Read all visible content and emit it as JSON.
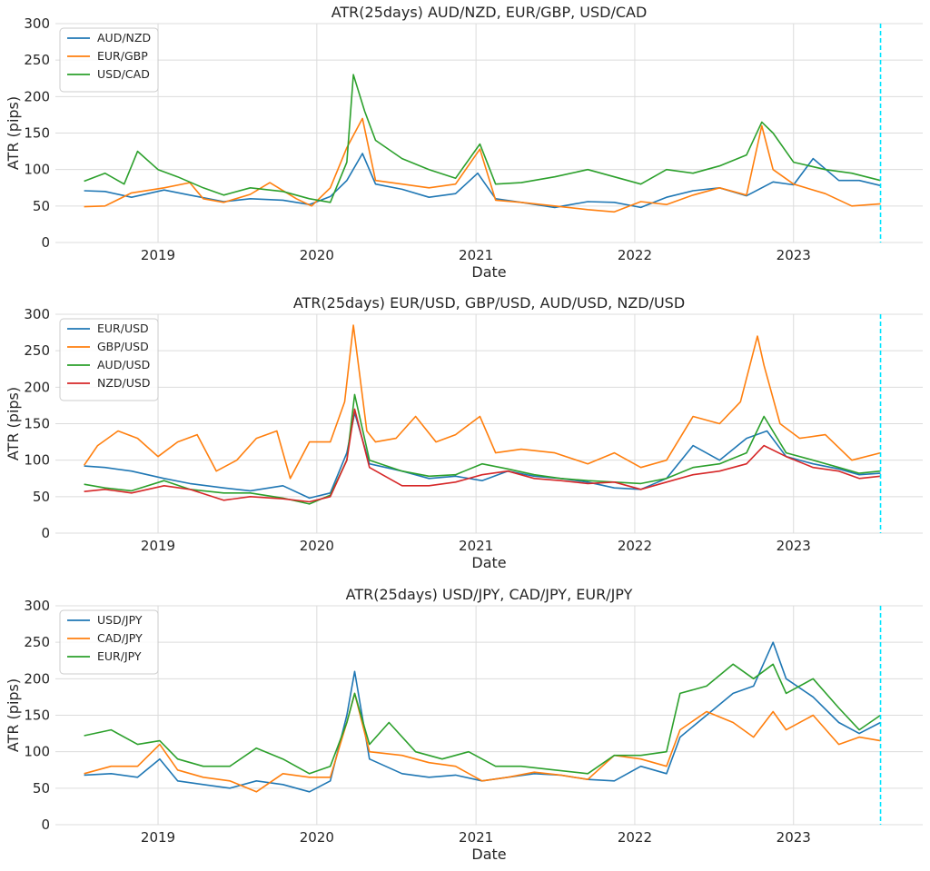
{
  "colors": {
    "blue": "#1f77b4",
    "orange": "#ff7f0e",
    "green": "#2ca02c",
    "red": "#d62728",
    "vline": "#00e5ff",
    "grid": "#dcdcdc",
    "axes_bg": "#ffffff"
  },
  "chart_data": [
    {
      "type": "line",
      "title": "ATR(25days)  AUD/NZD, EUR/GBP, USD/CAD",
      "xlabel": "Date",
      "ylabel": "ATR (pips)",
      "ylim": [
        0,
        300
      ],
      "yticks": [
        "0",
        "50",
        "100",
        "150",
        "200",
        "250",
        "300"
      ],
      "xlim": [
        "2018-05-10",
        "2023-10-25"
      ],
      "xticks": [
        "2019",
        "2020",
        "2021",
        "2022",
        "2023"
      ],
      "grid": true,
      "legend": "top-left",
      "vline": "2023-07-20",
      "series": [
        {
          "name": "AUD/NZD",
          "color": "blue",
          "x": [
            "2018-07-15",
            "2018-09-01",
            "2018-11-01",
            "2019-01-15",
            "2019-03-15",
            "2019-06-01",
            "2019-08-01",
            "2019-10-15",
            "2019-12-15",
            "2020-02-01",
            "2020-03-10",
            "2020-04-15",
            "2020-05-15",
            "2020-07-15",
            "2020-09-15",
            "2020-11-15",
            "2021-01-05",
            "2021-02-15",
            "2021-04-15",
            "2021-07-01",
            "2021-09-15",
            "2021-11-15",
            "2022-01-15",
            "2022-03-15",
            "2022-05-15",
            "2022-07-15",
            "2022-09-15",
            "2022-11-15",
            "2023-01-01",
            "2023-02-15",
            "2023-04-15",
            "2023-06-01",
            "2023-07-20"
          ],
          "y": [
            71,
            70,
            62,
            72,
            65,
            56,
            60,
            58,
            52,
            63,
            85,
            122,
            80,
            73,
            62,
            67,
            95,
            60,
            55,
            48,
            56,
            55,
            48,
            62,
            71,
            75,
            64,
            83,
            79,
            115,
            85,
            85,
            78
          ]
        },
        {
          "name": "EUR/GBP",
          "color": "orange",
          "x": [
            "2018-07-15",
            "2018-09-01",
            "2018-11-01",
            "2019-01-15",
            "2019-03-15",
            "2019-04-15",
            "2019-06-01",
            "2019-08-01",
            "2019-09-15",
            "2019-11-15",
            "2019-12-20",
            "2020-02-01",
            "2020-03-10",
            "2020-04-15",
            "2020-05-15",
            "2020-07-15",
            "2020-09-15",
            "2020-11-15",
            "2021-01-10",
            "2021-02-15",
            "2021-04-15",
            "2021-07-01",
            "2021-09-15",
            "2021-11-15",
            "2022-01-15",
            "2022-03-15",
            "2022-05-15",
            "2022-07-15",
            "2022-09-15",
            "2022-10-20",
            "2022-11-15",
            "2023-01-01",
            "2023-03-15",
            "2023-05-15",
            "2023-07-20"
          ],
          "y": [
            49,
            50,
            68,
            75,
            82,
            60,
            55,
            66,
            82,
            60,
            50,
            75,
            130,
            170,
            85,
            80,
            75,
            80,
            128,
            58,
            55,
            50,
            45,
            42,
            56,
            52,
            65,
            75,
            65,
            160,
            100,
            80,
            67,
            50,
            53
          ]
        },
        {
          "name": "USD/CAD",
          "color": "green",
          "x": [
            "2018-07-15",
            "2018-09-01",
            "2018-10-15",
            "2018-11-15",
            "2019-01-01",
            "2019-02-15",
            "2019-04-15",
            "2019-06-01",
            "2019-08-01",
            "2019-10-15",
            "2019-12-15",
            "2020-02-01",
            "2020-03-10",
            "2020-03-25",
            "2020-04-20",
            "2020-05-15",
            "2020-07-15",
            "2020-09-15",
            "2020-11-15",
            "2021-01-10",
            "2021-02-15",
            "2021-04-15",
            "2021-07-01",
            "2021-09-15",
            "2021-11-15",
            "2022-01-15",
            "2022-03-15",
            "2022-05-15",
            "2022-07-15",
            "2022-09-15",
            "2022-10-20",
            "2022-11-15",
            "2023-01-01",
            "2023-03-15",
            "2023-05-15",
            "2023-07-20"
          ],
          "y": [
            84,
            95,
            80,
            125,
            100,
            90,
            75,
            65,
            75,
            70,
            60,
            55,
            110,
            230,
            180,
            140,
            115,
            100,
            88,
            135,
            80,
            82,
            90,
            100,
            90,
            80,
            100,
            95,
            105,
            120,
            165,
            150,
            110,
            100,
            95,
            85
          ]
        }
      ]
    },
    {
      "type": "line",
      "title": "ATR(25days) EUR/USD, GBP/USD, AUD/USD, NZD/USD",
      "xlabel": "Date",
      "ylabel": "ATR (pips)",
      "ylim": [
        0,
        300
      ],
      "yticks": [
        "0",
        "50",
        "100",
        "150",
        "200",
        "250",
        "300"
      ],
      "xlim": [
        "2018-05-10",
        "2023-10-25"
      ],
      "xticks": [
        "2019",
        "2020",
        "2021",
        "2022",
        "2023"
      ],
      "grid": true,
      "legend": "top-left",
      "vline": "2023-07-20",
      "series": [
        {
          "name": "EUR/USD",
          "color": "blue",
          "x": [
            "2018-07-15",
            "2018-09-01",
            "2018-11-01",
            "2019-01-15",
            "2019-03-15",
            "2019-06-01",
            "2019-08-01",
            "2019-10-15",
            "2019-12-15",
            "2020-02-01",
            "2020-03-10",
            "2020-03-28",
            "2020-05-01",
            "2020-07-15",
            "2020-09-15",
            "2020-11-15",
            "2021-01-15",
            "2021-03-15",
            "2021-05-15",
            "2021-07-15",
            "2021-09-15",
            "2021-11-15",
            "2022-01-15",
            "2022-03-15",
            "2022-05-15",
            "2022-07-15",
            "2022-09-15",
            "2022-11-01",
            "2022-12-15",
            "2023-02-15",
            "2023-04-15",
            "2023-06-01",
            "2023-07-20"
          ],
          "y": [
            92,
            90,
            85,
            75,
            68,
            62,
            58,
            65,
            48,
            55,
            110,
            165,
            95,
            85,
            75,
            78,
            72,
            85,
            78,
            75,
            70,
            62,
            60,
            75,
            120,
            100,
            130,
            140,
            105,
            95,
            88,
            80,
            82
          ]
        },
        {
          "name": "GBP/USD",
          "color": "orange",
          "x": [
            "2018-07-15",
            "2018-08-15",
            "2018-10-01",
            "2018-11-15",
            "2019-01-01",
            "2019-02-15",
            "2019-04-01",
            "2019-05-15",
            "2019-07-01",
            "2019-08-15",
            "2019-10-01",
            "2019-11-01",
            "2019-12-15",
            "2020-02-01",
            "2020-03-05",
            "2020-03-25",
            "2020-04-25",
            "2020-05-15",
            "2020-07-01",
            "2020-08-15",
            "2020-10-01",
            "2020-11-15",
            "2021-01-10",
            "2021-02-15",
            "2021-04-15",
            "2021-07-01",
            "2021-09-15",
            "2021-11-15",
            "2022-01-15",
            "2022-03-15",
            "2022-05-15",
            "2022-07-15",
            "2022-09-01",
            "2022-10-10",
            "2022-10-25",
            "2022-12-01",
            "2023-01-15",
            "2023-03-15",
            "2023-05-15",
            "2023-07-20"
          ],
          "y": [
            93,
            120,
            140,
            130,
            105,
            125,
            135,
            85,
            100,
            130,
            140,
            75,
            125,
            125,
            180,
            285,
            140,
            125,
            130,
            160,
            125,
            135,
            160,
            110,
            115,
            110,
            95,
            110,
            90,
            100,
            160,
            150,
            180,
            270,
            230,
            150,
            130,
            135,
            100,
            110
          ]
        },
        {
          "name": "AUD/USD",
          "color": "green",
          "x": [
            "2018-07-15",
            "2018-09-01",
            "2018-11-01",
            "2019-01-15",
            "2019-03-15",
            "2019-06-01",
            "2019-08-01",
            "2019-10-15",
            "2019-12-15",
            "2020-02-01",
            "2020-03-10",
            "2020-03-28",
            "2020-05-01",
            "2020-07-15",
            "2020-09-15",
            "2020-11-15",
            "2021-01-15",
            "2021-03-15",
            "2021-05-15",
            "2021-07-15",
            "2021-09-15",
            "2021-11-15",
            "2022-01-15",
            "2022-03-15",
            "2022-05-15",
            "2022-07-15",
            "2022-09-15",
            "2022-10-25",
            "2022-12-15",
            "2023-02-15",
            "2023-04-15",
            "2023-06-01",
            "2023-07-20"
          ],
          "y": [
            67,
            62,
            58,
            72,
            60,
            55,
            55,
            48,
            40,
            52,
            100,
            190,
            100,
            85,
            78,
            80,
            95,
            88,
            80,
            75,
            72,
            70,
            68,
            75,
            90,
            95,
            110,
            160,
            110,
            100,
            90,
            82,
            85
          ]
        },
        {
          "name": "NZD/USD",
          "color": "red",
          "x": [
            "2018-07-15",
            "2018-09-01",
            "2018-11-01",
            "2019-01-15",
            "2019-03-15",
            "2019-06-01",
            "2019-08-01",
            "2019-10-15",
            "2019-12-15",
            "2020-02-01",
            "2020-03-10",
            "2020-03-28",
            "2020-05-01",
            "2020-07-15",
            "2020-09-15",
            "2020-11-15",
            "2021-01-15",
            "2021-03-15",
            "2021-05-15",
            "2021-07-15",
            "2021-09-15",
            "2021-11-15",
            "2022-01-15",
            "2022-03-15",
            "2022-05-15",
            "2022-07-15",
            "2022-09-15",
            "2022-10-25",
            "2022-12-15",
            "2023-02-15",
            "2023-04-15",
            "2023-06-01",
            "2023-07-20"
          ],
          "y": [
            57,
            60,
            55,
            65,
            60,
            45,
            50,
            47,
            43,
            50,
            100,
            170,
            90,
            65,
            65,
            70,
            80,
            85,
            75,
            72,
            68,
            70,
            60,
            70,
            80,
            85,
            95,
            120,
            105,
            90,
            85,
            75,
            78
          ]
        }
      ]
    },
    {
      "type": "line",
      "title": "ATR(25days) USD/JPY, CAD/JPY, EUR/JPY",
      "xlabel": "Date",
      "ylabel": "ATR (pips)",
      "ylim": [
        0,
        300
      ],
      "yticks": [
        "0",
        "50",
        "100",
        "150",
        "200",
        "250",
        "300"
      ],
      "xlim": [
        "2018-05-10",
        "2023-10-25"
      ],
      "xticks": [
        "2019",
        "2020",
        "2021",
        "2022",
        "2023"
      ],
      "grid": true,
      "legend": "top-left",
      "vline": "2023-07-20",
      "series": [
        {
          "name": "USD/JPY",
          "color": "blue",
          "x": [
            "2018-07-15",
            "2018-09-15",
            "2018-11-15",
            "2019-01-05",
            "2019-02-15",
            "2019-04-15",
            "2019-06-15",
            "2019-08-15",
            "2019-10-15",
            "2019-12-15",
            "2020-02-01",
            "2020-03-10",
            "2020-03-28",
            "2020-05-01",
            "2020-07-15",
            "2020-09-15",
            "2020-11-15",
            "2021-01-15",
            "2021-03-15",
            "2021-05-15",
            "2021-07-15",
            "2021-09-15",
            "2021-11-15",
            "2022-01-15",
            "2022-03-15",
            "2022-04-15",
            "2022-06-15",
            "2022-08-15",
            "2022-10-01",
            "2022-11-15",
            "2022-12-15",
            "2023-02-15",
            "2023-04-15",
            "2023-06-01",
            "2023-07-20"
          ],
          "y": [
            68,
            70,
            65,
            90,
            60,
            55,
            50,
            60,
            55,
            45,
            60,
            150,
            210,
            90,
            70,
            65,
            68,
            60,
            65,
            70,
            68,
            62,
            60,
            80,
            70,
            120,
            150,
            180,
            190,
            250,
            200,
            175,
            140,
            125,
            140
          ]
        },
        {
          "name": "CAD/JPY",
          "color": "orange",
          "x": [
            "2018-07-15",
            "2018-09-15",
            "2018-11-15",
            "2019-01-05",
            "2019-02-15",
            "2019-04-15",
            "2019-06-15",
            "2019-08-15",
            "2019-10-15",
            "2019-12-15",
            "2020-02-01",
            "2020-03-10",
            "2020-03-28",
            "2020-05-01",
            "2020-07-15",
            "2020-09-15",
            "2020-11-15",
            "2021-01-15",
            "2021-03-15",
            "2021-05-15",
            "2021-07-15",
            "2021-09-15",
            "2021-11-15",
            "2022-01-15",
            "2022-03-15",
            "2022-04-15",
            "2022-06-15",
            "2022-08-15",
            "2022-10-01",
            "2022-11-15",
            "2022-12-15",
            "2023-02-15",
            "2023-04-15",
            "2023-06-01",
            "2023-07-20"
          ],
          "y": [
            70,
            80,
            80,
            110,
            75,
            65,
            60,
            45,
            70,
            65,
            65,
            140,
            180,
            100,
            95,
            85,
            80,
            60,
            65,
            72,
            68,
            62,
            95,
            90,
            80,
            130,
            155,
            140,
            120,
            155,
            130,
            150,
            110,
            120,
            115
          ]
        },
        {
          "name": "EUR/JPY",
          "color": "green",
          "x": [
            "2018-07-15",
            "2018-09-15",
            "2018-11-15",
            "2019-01-05",
            "2019-02-15",
            "2019-04-15",
            "2019-06-15",
            "2019-08-15",
            "2019-10-15",
            "2019-12-15",
            "2020-02-01",
            "2020-03-10",
            "2020-03-28",
            "2020-05-01",
            "2020-06-15",
            "2020-08-15",
            "2020-10-15",
            "2020-12-15",
            "2021-02-15",
            "2021-04-15",
            "2021-07-01",
            "2021-09-15",
            "2021-11-15",
            "2022-01-15",
            "2022-03-15",
            "2022-04-15",
            "2022-06-15",
            "2022-08-15",
            "2022-10-01",
            "2022-11-15",
            "2022-12-15",
            "2023-02-15",
            "2023-04-15",
            "2023-06-01",
            "2023-07-20"
          ],
          "y": [
            122,
            130,
            110,
            115,
            90,
            80,
            80,
            105,
            90,
            70,
            80,
            140,
            180,
            110,
            140,
            100,
            90,
            100,
            80,
            80,
            75,
            70,
            95,
            95,
            100,
            180,
            190,
            220,
            200,
            220,
            180,
            200,
            160,
            130,
            150
          ]
        }
      ]
    }
  ]
}
